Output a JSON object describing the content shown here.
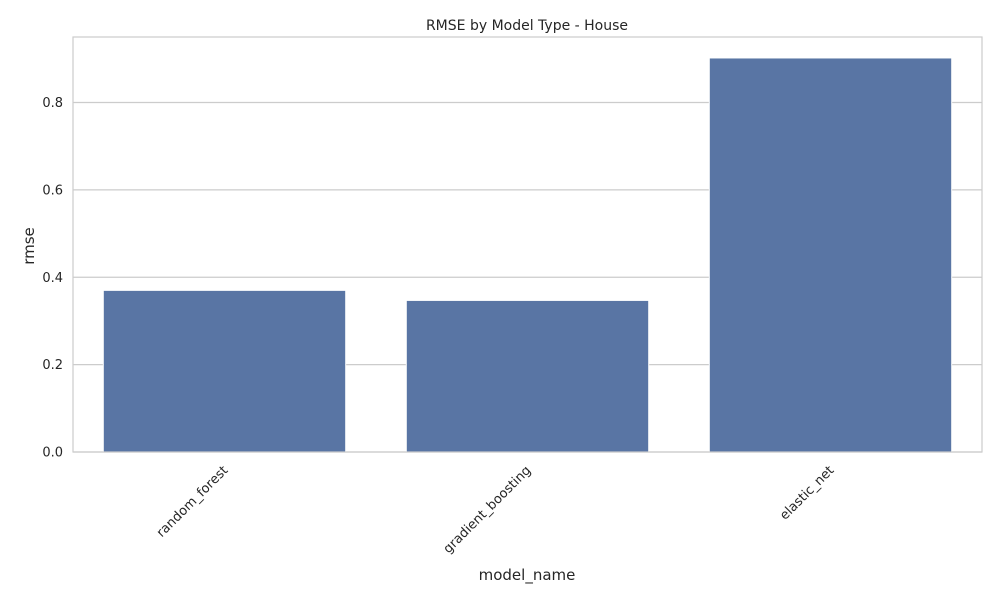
{
  "chart_data": {
    "type": "bar",
    "title": "RMSE by Model Type - House",
    "xlabel": "model_name",
    "ylabel": "rmse",
    "categories": [
      "random_forest",
      "gradient_boosting",
      "elastic_net"
    ],
    "values": [
      0.37,
      0.347,
      0.902
    ],
    "ylim": [
      0,
      0.95
    ],
    "yticks": [
      0.0,
      0.2,
      0.4,
      0.6,
      0.8
    ],
    "ytick_labels": [
      "0.0",
      "0.2",
      "0.4",
      "0.6",
      "0.8"
    ],
    "x_tick_rotation_deg": 45,
    "grid": "horizontal",
    "legend": "none",
    "bar_color": "#5975a4",
    "grid_color": "#cccccc",
    "frame_color": "#cccccc"
  }
}
